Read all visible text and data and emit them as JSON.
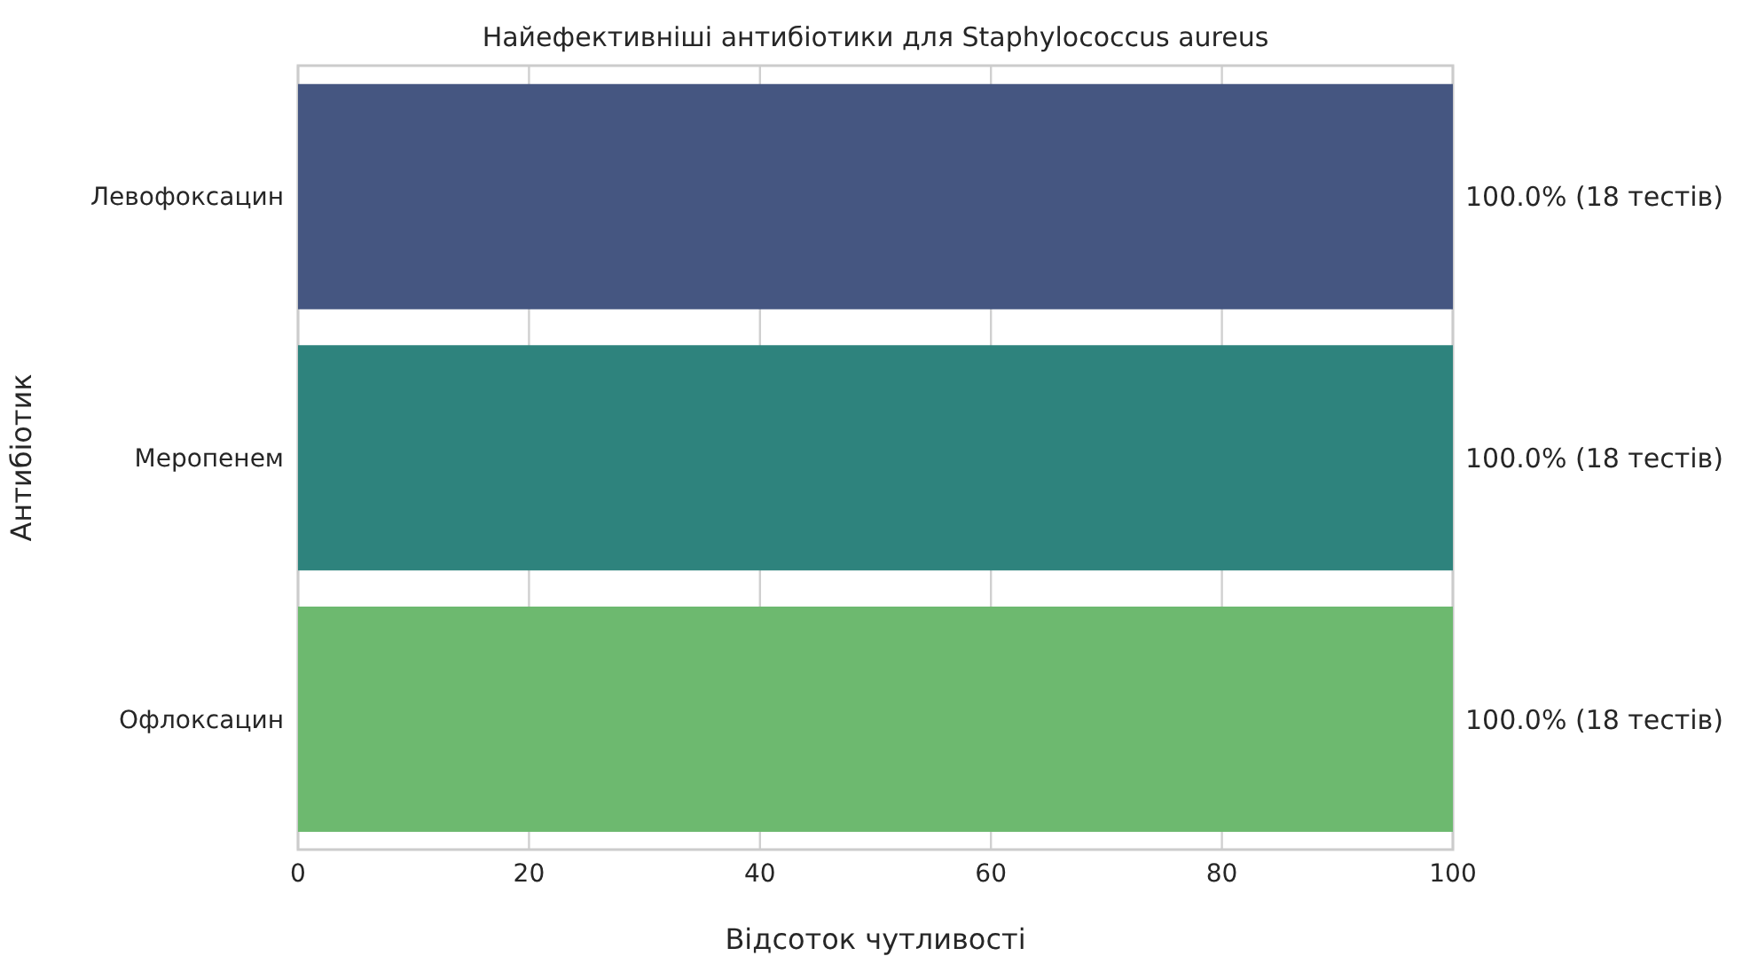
{
  "chart_data": {
    "type": "bar",
    "orientation": "horizontal",
    "title": "Найефективніші антибіотики для Staphylococcus aureus",
    "xlabel": "Відсоток чутливості",
    "ylabel": "Антибіотик",
    "categories": [
      "Левофоксацин",
      "Меропенем",
      "Офлоксацин"
    ],
    "values": [
      100,
      100,
      100
    ],
    "colors": [
      "#455681",
      "#2e837d",
      "#6db96f"
    ],
    "value_labels": [
      "100.0% (18 тестів)",
      "100.0% (18 тестів)",
      "100.0% (18 тестів)"
    ],
    "xlim": [
      0,
      100
    ],
    "xticks": [
      0,
      20,
      40,
      60,
      80,
      100
    ],
    "grid": "x"
  }
}
